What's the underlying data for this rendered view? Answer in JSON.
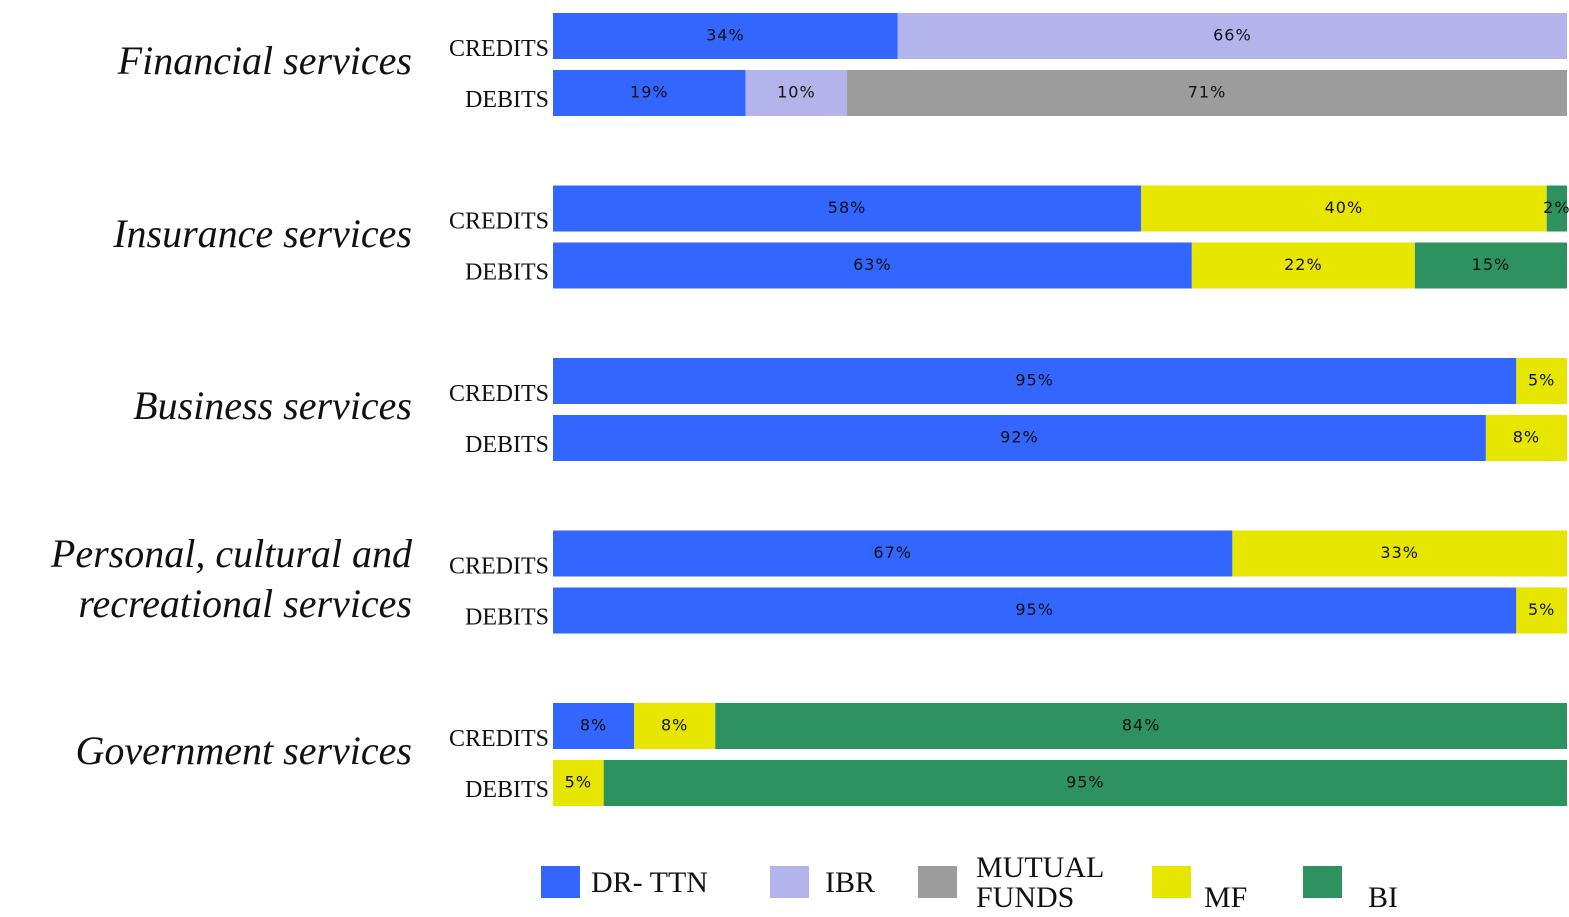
{
  "chart_data": {
    "type": "stacked-bar-horizontal",
    "groups": [
      "Financial services",
      "Insurance services",
      "Business services",
      "Personal, cultural and recreational services",
      "Government services"
    ],
    "categories": [
      "CREDITS",
      "DEBITS",
      "CREDITS",
      "DEBITS",
      "CREDITS",
      "DEBITS",
      "CREDITS",
      "DEBITS",
      "CREDITS",
      "DEBITS"
    ],
    "xlim": [
      0,
      100
    ],
    "series": [
      {
        "name": "DR- TTN",
        "color": "#3366ff",
        "values": [
          34,
          19,
          58,
          63,
          95,
          92,
          67,
          95,
          8,
          null
        ],
        "value_labels": [
          "34%",
          "19%",
          "58%",
          "63%",
          "95%",
          "92%",
          "67%",
          "95%",
          "8%",
          null
        ]
      },
      {
        "name": "IBR",
        "color": "#b4b4ec",
        "values": [
          66,
          10,
          null,
          null,
          null,
          null,
          null,
          null,
          null,
          null
        ],
        "value_labels": [
          "66%",
          "10%",
          null,
          null,
          null,
          null,
          null,
          null,
          null,
          null
        ]
      },
      {
        "name": "MUTUAL FUNDS",
        "color": "#9c9c9c",
        "values": [
          null,
          71,
          null,
          null,
          null,
          null,
          null,
          null,
          null,
          null
        ],
        "value_labels": [
          null,
          "71%",
          null,
          null,
          null,
          null,
          null,
          null,
          null,
          null
        ]
      },
      {
        "name": "MF",
        "color": "#e6e600",
        "values": [
          null,
          null,
          40,
          22,
          5,
          8,
          33,
          5,
          8,
          5
        ],
        "value_labels": [
          null,
          null,
          "40%",
          "22%",
          "5%",
          "8%",
          "33%",
          "5%",
          "8%",
          "5%"
        ]
      },
      {
        "name": "BI",
        "color": "#2e9260",
        "values": [
          null,
          null,
          2,
          15,
          null,
          null,
          null,
          null,
          84,
          95
        ],
        "value_labels": [
          null,
          null,
          "2%",
          "15%",
          null,
          null,
          null,
          null,
          "84%",
          "95%"
        ]
      }
    ],
    "legend": "bottom"
  }
}
